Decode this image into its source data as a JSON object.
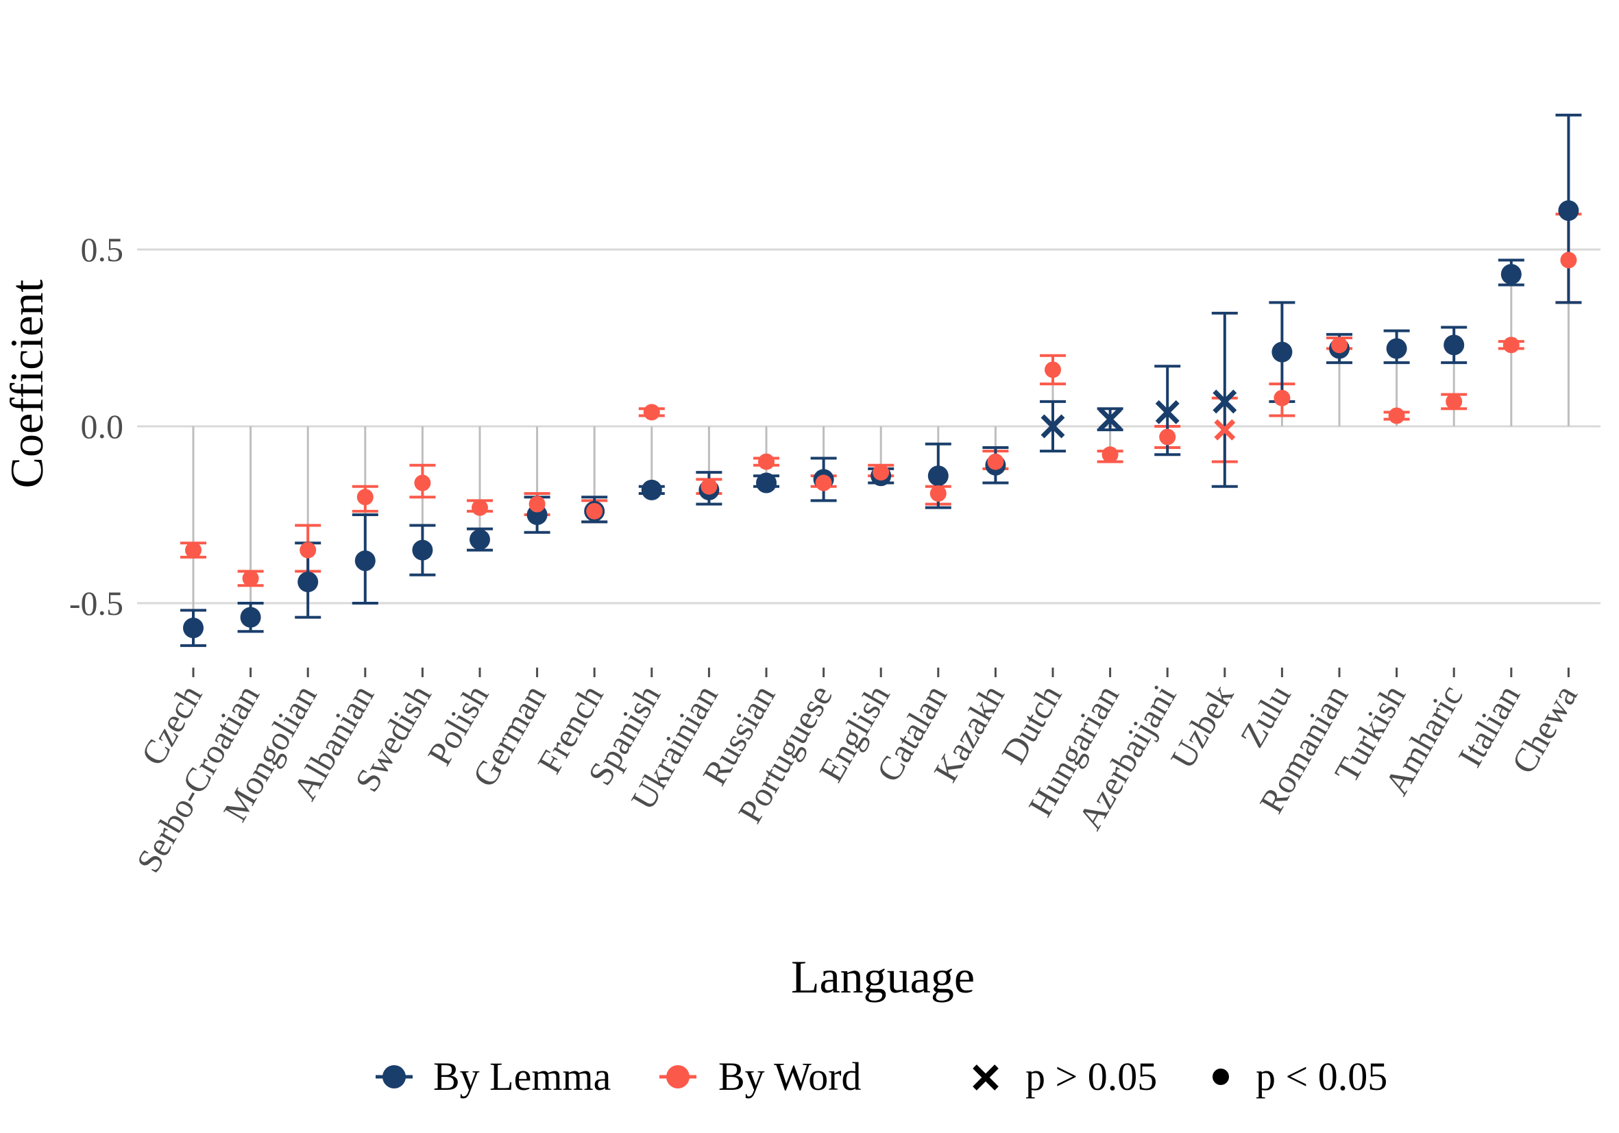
{
  "chart_data": {
    "type": "scatter",
    "subtype": "point-range with error bars",
    "xlabel": "Language",
    "ylabel": "Coefficient",
    "ylim": [
      -0.63,
      0.94
    ],
    "y_ticks": [
      -0.5,
      0.0,
      0.5
    ],
    "y_tick_labels": [
      "-0.5",
      "0.0",
      "0.5"
    ],
    "grid": "horizontal major gridlines",
    "legend_position": "bottom",
    "categories": [
      "Czech",
      "Serbo-Croatian",
      "Mongolian",
      "Albanian",
      "Swedish",
      "Polish",
      "German",
      "French",
      "Spanish",
      "Ukrainian",
      "Russian",
      "Portuguese",
      "English",
      "Catalan",
      "Kazakh",
      "Dutch",
      "Hungarian",
      "Azerbaijani",
      "Uzbek",
      "Zulu",
      "Romanian",
      "Turkish",
      "Amharic",
      "Italian",
      "Chewa"
    ],
    "series": [
      {
        "name": "By Lemma",
        "color": "#1a3e6b",
        "values": [
          -0.57,
          -0.54,
          -0.44,
          -0.38,
          -0.35,
          -0.32,
          -0.25,
          -0.24,
          -0.18,
          -0.18,
          -0.16,
          -0.15,
          -0.14,
          -0.14,
          -0.11,
          0.0,
          0.02,
          0.04,
          0.07,
          0.21,
          0.22,
          0.22,
          0.23,
          0.43,
          0.61
        ],
        "ci_low": [
          -0.62,
          -0.58,
          -0.54,
          -0.5,
          -0.42,
          -0.35,
          -0.3,
          -0.27,
          -0.19,
          -0.22,
          -0.17,
          -0.21,
          -0.16,
          -0.23,
          -0.16,
          -0.07,
          -0.01,
          -0.08,
          -0.17,
          0.07,
          0.18,
          0.18,
          0.18,
          0.4,
          0.35
        ],
        "ci_high": [
          -0.52,
          -0.5,
          -0.33,
          -0.25,
          -0.28,
          -0.29,
          -0.2,
          -0.2,
          -0.17,
          -0.13,
          -0.14,
          -0.09,
          -0.12,
          -0.05,
          -0.06,
          0.07,
          0.05,
          0.17,
          0.32,
          0.35,
          0.26,
          0.27,
          0.28,
          0.47,
          0.88
        ],
        "significant": [
          true,
          true,
          true,
          true,
          true,
          true,
          true,
          true,
          true,
          true,
          true,
          true,
          true,
          true,
          true,
          false,
          false,
          false,
          false,
          true,
          true,
          true,
          true,
          true,
          true
        ]
      },
      {
        "name": "By Word",
        "color": "#fb5a4b",
        "values": [
          -0.35,
          -0.43,
          -0.35,
          -0.2,
          -0.16,
          -0.23,
          -0.22,
          -0.24,
          0.04,
          -0.17,
          -0.1,
          -0.16,
          -0.13,
          -0.19,
          -0.1,
          0.16,
          -0.08,
          -0.03,
          -0.01,
          0.08,
          0.23,
          0.03,
          0.07,
          0.23,
          0.47
        ],
        "ci_low": [
          -0.37,
          -0.45,
          -0.41,
          -0.24,
          -0.2,
          -0.24,
          -0.25,
          -0.27,
          0.03,
          -0.19,
          -0.11,
          -0.17,
          -0.14,
          -0.22,
          -0.12,
          0.12,
          -0.1,
          -0.06,
          -0.1,
          0.03,
          0.22,
          0.02,
          0.05,
          0.22,
          0.35
        ],
        "ci_high": [
          -0.33,
          -0.41,
          -0.28,
          -0.17,
          -0.11,
          -0.21,
          -0.19,
          -0.21,
          0.05,
          -0.15,
          -0.09,
          -0.14,
          -0.11,
          -0.17,
          -0.07,
          0.2,
          -0.07,
          0.0,
          0.08,
          0.12,
          0.25,
          0.04,
          0.09,
          0.24,
          0.6
        ],
        "significant": [
          true,
          true,
          true,
          true,
          true,
          true,
          true,
          true,
          true,
          true,
          true,
          true,
          true,
          true,
          true,
          true,
          true,
          true,
          false,
          true,
          true,
          true,
          true,
          true,
          true
        ]
      }
    ]
  },
  "legend": {
    "lemma_label": "By Lemma",
    "word_label": "By Word",
    "ns_label": "p > 0.05",
    "sig_label": "p < 0.05",
    "lemma_color": "#1a3e6b",
    "word_color": "#fb5a4b"
  },
  "colors": {
    "gridline": "#d9d9d9",
    "stem": "#bebebe",
    "tick_text": "#4d4d4d"
  }
}
